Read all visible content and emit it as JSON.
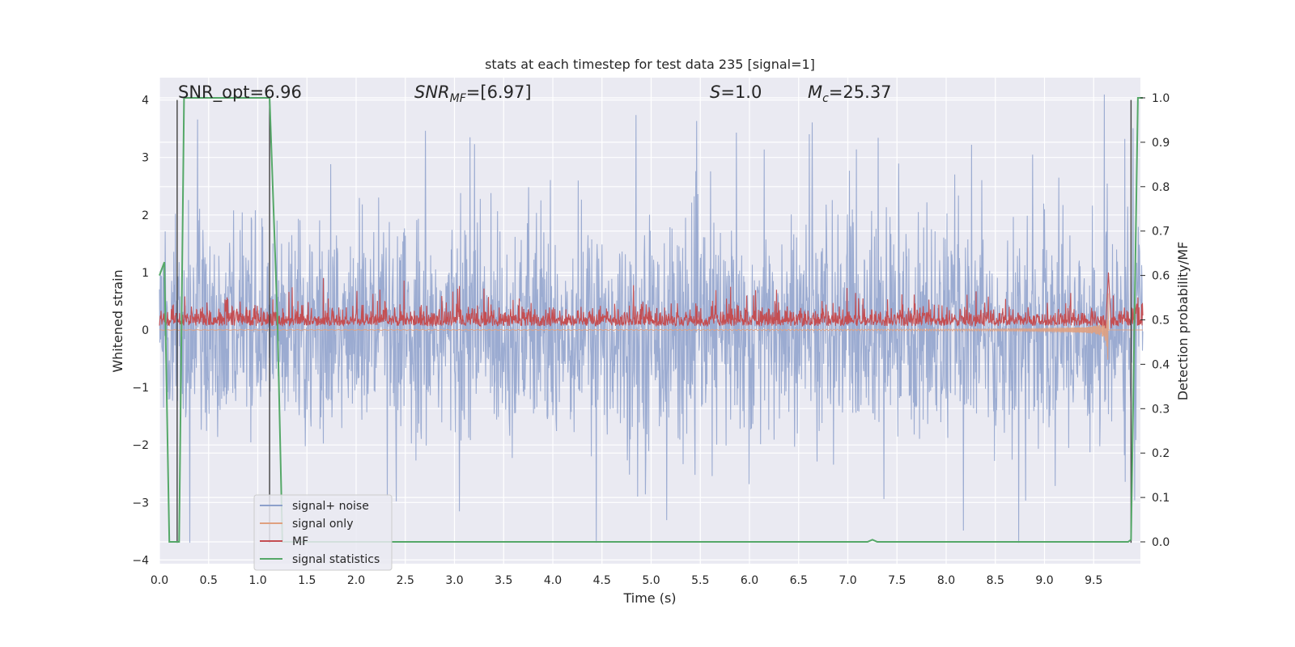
{
  "chart_data": {
    "type": "line",
    "title": "stats at each timestep for test data 235 [signal=1]",
    "xlabel": "Time (s)",
    "ylabel_left": "Whitened strain",
    "ylabel_right": "Detection probability/MF",
    "xlim": [
      0.0,
      10.0
    ],
    "ylim_left": [
      -4.2,
      4.3
    ],
    "ylim_right": [
      -0.045,
      1.045
    ],
    "x_ticks": [
      "0.0",
      "0.5",
      "1.0",
      "1.5",
      "2.0",
      "2.5",
      "3.0",
      "3.5",
      "4.0",
      "4.5",
      "5.0",
      "5.5",
      "6.0",
      "6.5",
      "7.0",
      "7.5",
      "8.0",
      "8.5",
      "9.0",
      "9.5"
    ],
    "y_ticks_left": [
      "4",
      "3",
      "2",
      "1",
      "0",
      "−1",
      "−2",
      "−3",
      "−4"
    ],
    "y_ticks_right": [
      "1.0",
      "0.9",
      "0.8",
      "0.7",
      "0.6",
      "0.5",
      "0.4",
      "0.3",
      "0.2",
      "0.1",
      "0.0"
    ],
    "grid": true,
    "legend_position": "lower-left",
    "annotations": {
      "snr_opt": "SNR_opt=6.96",
      "snr_mf_sym": "SNR",
      "snr_mf_sub": "MF",
      "snr_mf_val": "=[6.97]",
      "s_sym": "S",
      "s_val": "=1.0",
      "mc_sym": "M",
      "mc_sub": "c",
      "mc_val": "=25.37"
    },
    "vertical_lines_x": [
      0.18,
      1.12,
      9.88
    ],
    "series": [
      {
        "name": "signal+ noise",
        "color": "#8da0cb",
        "axis": "left",
        "kind": "noise",
        "std": 0.95,
        "spike_max": 4.1
      },
      {
        "name": "signal only",
        "color": "#e0a080",
        "axis": "left",
        "kind": "chirp",
        "end_time": 9.65,
        "max_amp": 1.45
      },
      {
        "name": "MF",
        "color": "#c44e52",
        "axis": "left",
        "kind": "mf",
        "base": 0.12,
        "spread": 0.38
      },
      {
        "name": "signal statistics",
        "color": "#55a868",
        "axis": "right",
        "x": [
          0.0,
          0.05,
          0.1,
          0.12,
          0.2,
          0.25,
          0.3,
          1.1,
          1.12,
          1.2,
          1.25,
          7.2,
          7.25,
          7.3,
          9.85,
          9.88,
          9.95,
          10.0
        ],
        "y": [
          0.6,
          0.63,
          0.0,
          0.0,
          0.0,
          1.0,
          1.0,
          1.0,
          1.0,
          0.5,
          0.0,
          0.0,
          0.005,
          0.0,
          0.0,
          0.005,
          1.0,
          1.0
        ]
      }
    ],
    "colors": {
      "background": "#eaeaf2",
      "grid": "#ffffff",
      "vline": "#404040"
    }
  }
}
